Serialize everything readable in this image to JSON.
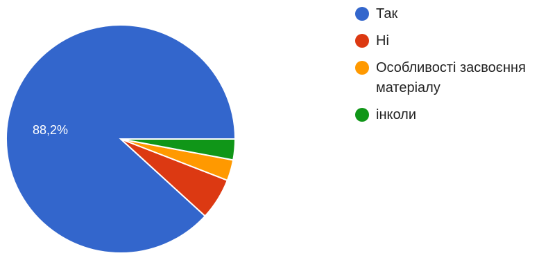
{
  "chart_data": {
    "type": "pie",
    "legend_position": "right",
    "slices": [
      {
        "label": "Так",
        "value": 88.2,
        "value_label": "88,2%",
        "color": "#3366cc"
      },
      {
        "label": "Ні",
        "value": 5.9,
        "value_label": "",
        "color": "#dc3912"
      },
      {
        "label": "Особливості засвоєння матеріалу",
        "value": 2.95,
        "value_label": "",
        "color": "#ff9900"
      },
      {
        "label": "інколи",
        "value": 2.95,
        "value_label": "",
        "color": "#109618"
      }
    ]
  }
}
